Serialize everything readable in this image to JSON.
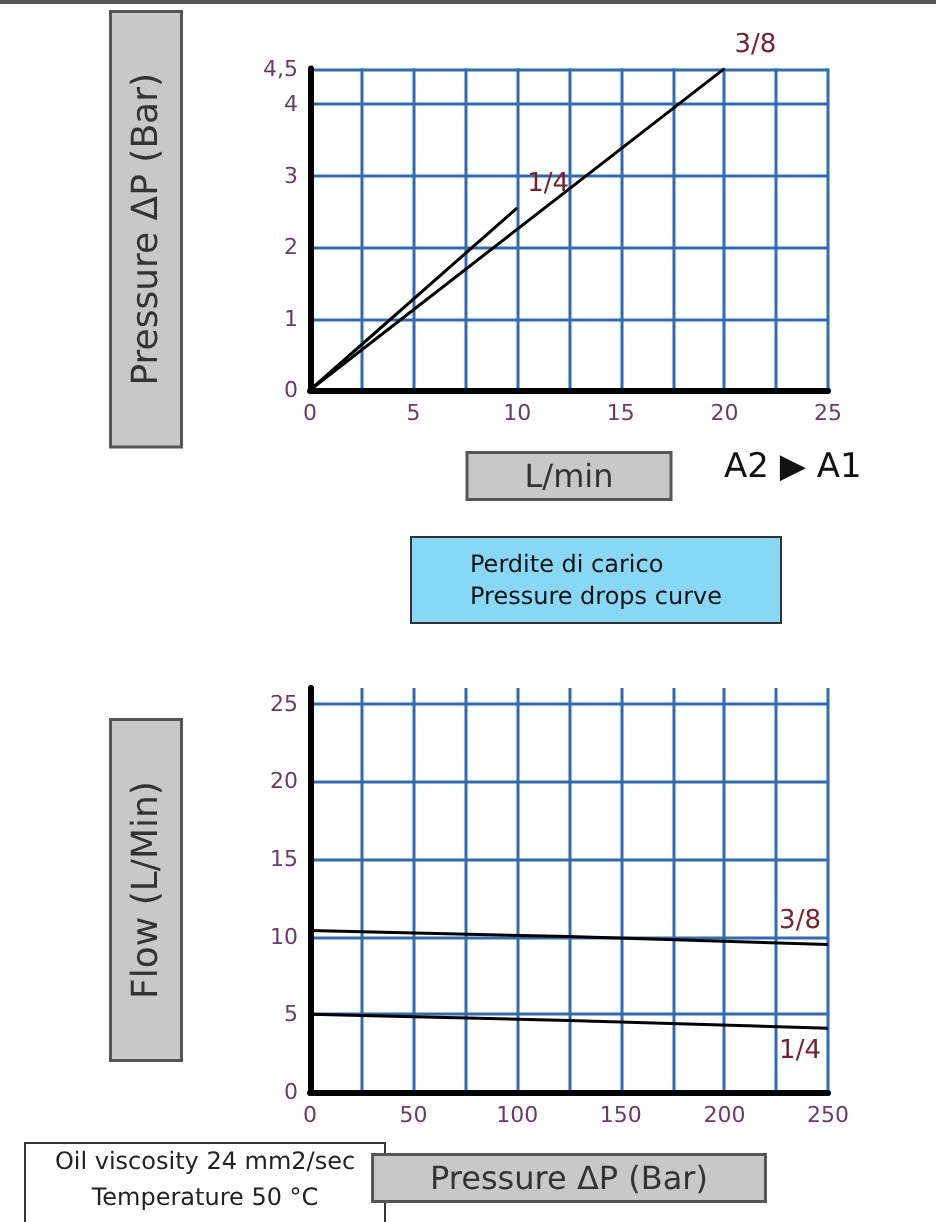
{
  "chart_data": [
    {
      "type": "line",
      "xlabel": "L/min",
      "ylabel": "Pressure ΔP (Bar)",
      "annotations": [
        "A2 ▶ A1"
      ],
      "xlim": [
        0,
        25
      ],
      "ylim": [
        0,
        4.5
      ],
      "xticks": [
        0,
        {
          "value": 2.5,
          "label": null
        },
        5,
        {
          "value": 7.5,
          "label": null
        },
        10,
        {
          "value": 12.5,
          "label": null
        },
        15,
        {
          "value": 17.5,
          "label": null
        },
        20,
        {
          "value": 22.5,
          "label": null
        },
        25
      ],
      "yticks": [
        0,
        1,
        2,
        3,
        4,
        {
          "value": 4.5,
          "label": "4,5"
        }
      ],
      "grid": true,
      "legend": false,
      "marker": "none",
      "line_style": "solid",
      "series": [
        {
          "name": "1/4",
          "color": "#000000",
          "x": [
            0,
            10
          ],
          "values": [
            0,
            2.55
          ]
        },
        {
          "name": "3/8",
          "color": "#000000",
          "x": [
            0,
            20
          ],
          "values": [
            0,
            4.5
          ]
        }
      ]
    },
    {
      "type": "line",
      "title": "Perdite di carico\nPressure drops curve",
      "xlabel": "Pressure ΔP (Bar)",
      "ylabel": "Flow (L/Min)",
      "annotations": [
        "Oil viscosity 24 mm2/sec",
        "Temperature 50 °C"
      ],
      "xlim": [
        0,
        250
      ],
      "ylim": [
        0,
        26
      ],
      "xticks": [
        0,
        {
          "value": 25,
          "label": null
        },
        50,
        {
          "value": 75,
          "label": null
        },
        100,
        {
          "value": 125,
          "label": null
        },
        150,
        {
          "value": 175,
          "label": null
        },
        200,
        {
          "value": 225,
          "label": null
        },
        250
      ],
      "yticks": [
        0,
        5,
        10,
        15,
        20,
        25
      ],
      "grid": true,
      "legend": false,
      "marker": "none",
      "line_style": "solid",
      "series": [
        {
          "name": "3/8",
          "color": "#000000",
          "x": [
            0,
            125,
            250
          ],
          "values": [
            10.4,
            10,
            9.5
          ]
        },
        {
          "name": "1/4",
          "color": "#000000",
          "x": [
            0,
            125,
            250
          ],
          "values": [
            5,
            4.6,
            4.1
          ]
        }
      ]
    }
  ]
}
